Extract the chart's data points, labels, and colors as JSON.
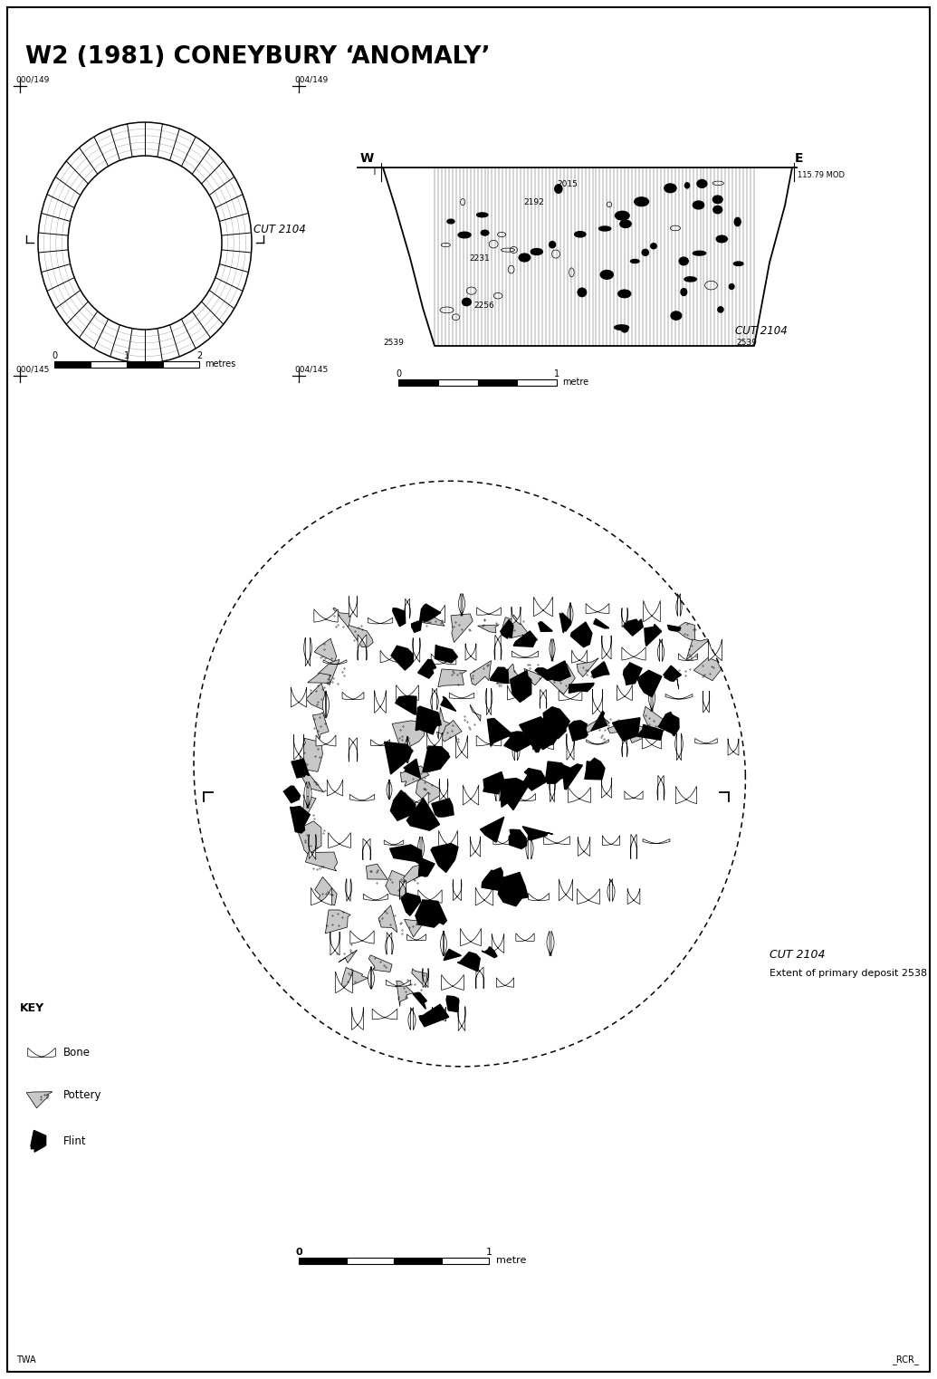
{
  "title": "W2 (1981) CONEYBURY ‘ANOMALY’",
  "bg_color": "#ffffff",
  "top_left_label": "000/149",
  "top_right_label": "004/149",
  "cut_label_plan": "CUT 2104",
  "cut_label_section": "CUT 2104",
  "section_W_label": "W",
  "section_E_label": "E",
  "section_elevation": "115.79 MOD",
  "bottom_left_label": "000/145",
  "bottom_right_label": "004/145",
  "key_title": "KEY",
  "key_items": [
    "Bone",
    "Pottery",
    "Flint"
  ],
  "cut2104_bottom": "CUT 2104",
  "cut2104_deposit": "Extent of primary deposit 2538",
  "scale_metre": "metre",
  "scale_metres": "metres",
  "footer_left": "TWA",
  "footer_right": "_RCR_"
}
